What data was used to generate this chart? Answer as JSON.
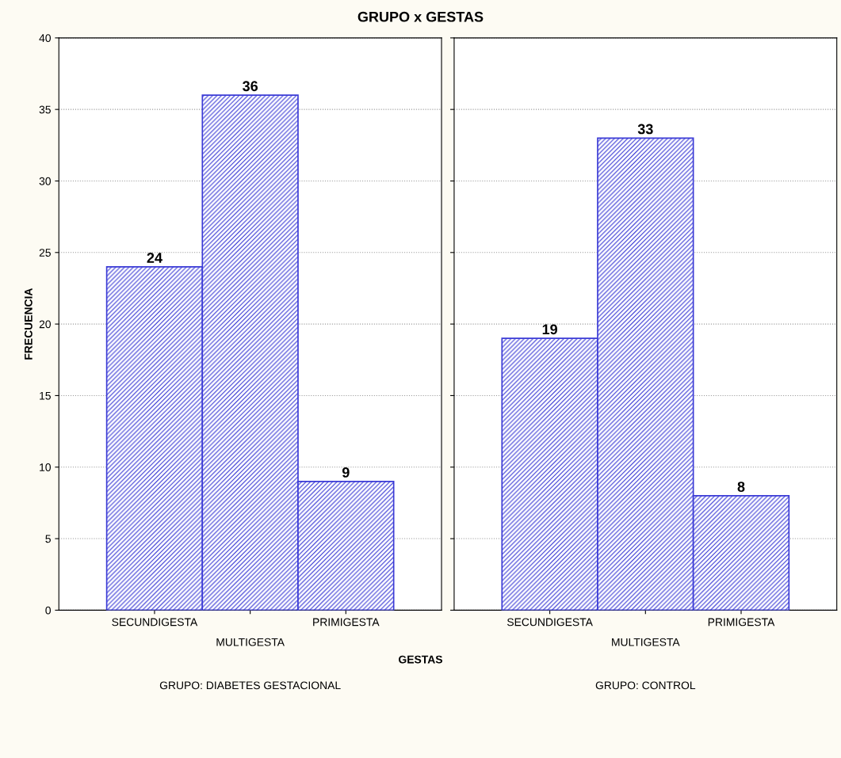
{
  "chart_data": [
    {
      "type": "bar",
      "title": "GRUPO x GESTAS",
      "ylabel": "FRECUENCIA",
      "xlabel": "GRUPO: DIABETES GESTACIONAL",
      "annotations": [
        "GESTAS"
      ],
      "categories": [
        "SECUNDIGESTA",
        "MULTIGESTA",
        "PRIMIGESTA"
      ],
      "values": [
        24,
        36,
        9
      ],
      "color": "#3b3bd6",
      "ylim": [
        0,
        40
      ],
      "yticks": [
        0,
        5,
        10,
        15,
        20,
        25,
        30,
        35,
        40
      ],
      "grid": "y",
      "data_labels": true
    },
    {
      "type": "bar",
      "xlabel": "GRUPO: CONTROL",
      "categories": [
        "SECUNDIGESTA",
        "MULTIGESTA",
        "PRIMIGESTA"
      ],
      "values": [
        19,
        33,
        8
      ],
      "color": "#3b3bd6",
      "ylim": [
        0,
        40
      ],
      "yticks": [
        0,
        5,
        10,
        15,
        20,
        25,
        30,
        35,
        40
      ],
      "grid": "y",
      "data_labels": true,
      "tick_labels": "x"
    }
  ]
}
